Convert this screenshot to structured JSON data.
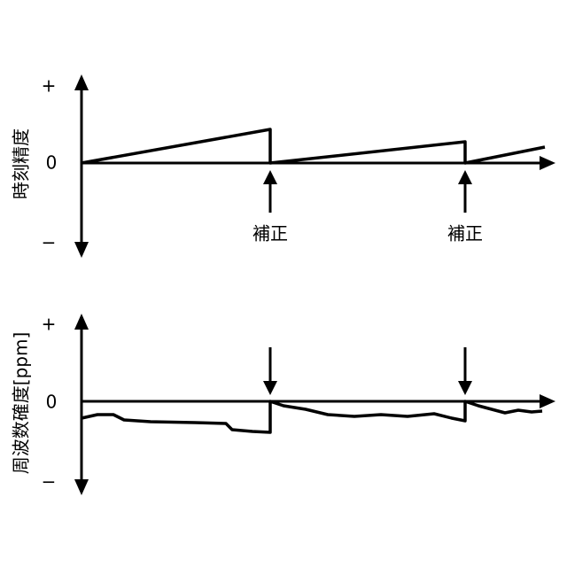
{
  "top_chart": {
    "y_label": "時刻精度",
    "plus": "+",
    "zero": "0",
    "minus": "−",
    "corrections": [
      "補正",
      "補正"
    ]
  },
  "bottom_chart": {
    "y_label": "周波数確度[ppm]",
    "plus": "+",
    "zero": "0",
    "minus": "−"
  }
}
